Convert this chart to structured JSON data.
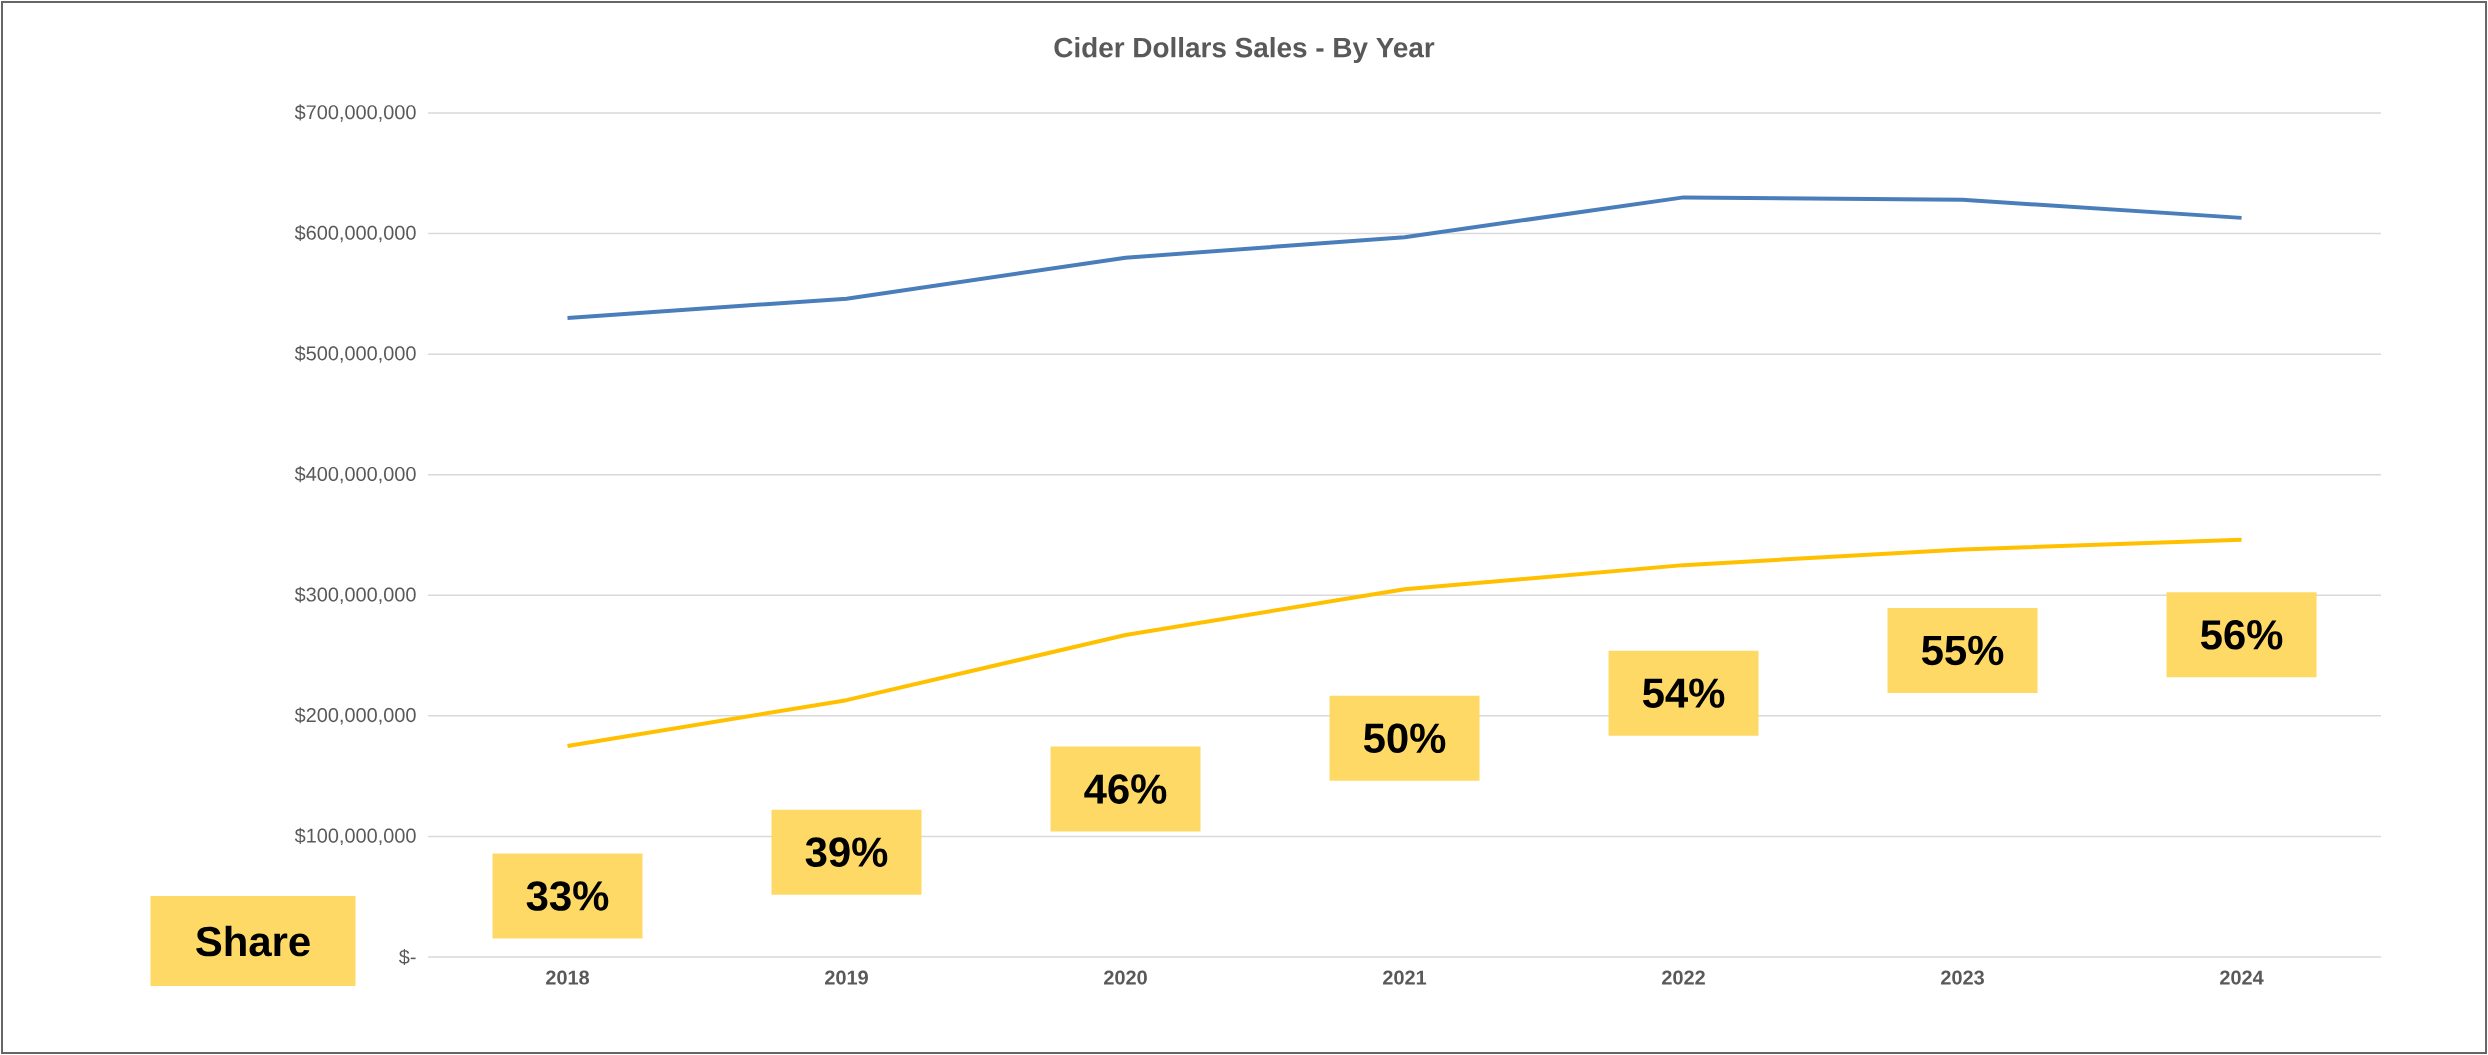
{
  "chart_data": {
    "type": "line",
    "title": "Cider Dollars Sales - By Year",
    "categories": [
      "2018",
      "2019",
      "2020",
      "2021",
      "2022",
      "2023",
      "2024"
    ],
    "series": [
      {
        "color": "#4a7ebb",
        "values": [
          530000000,
          546000000,
          580000000,
          597000000,
          630000000,
          628000000,
          613000000
        ]
      },
      {
        "color": "#ffc000",
        "values": [
          175000000,
          213000000,
          267000000,
          305000000,
          325000000,
          338000000,
          346000000
        ]
      }
    ],
    "ylim": [
      0,
      700000000
    ],
    "yticks": [
      {
        "value": 0,
        "label": "$-"
      },
      {
        "value": 100000000,
        "label": "$100,000,000"
      },
      {
        "value": 200000000,
        "label": "$200,000,000"
      },
      {
        "value": 300000000,
        "label": "$300,000,000"
      },
      {
        "value": 400000000,
        "label": "$400,000,000"
      },
      {
        "value": 500000000,
        "label": "$500,000,000"
      },
      {
        "value": 600000000,
        "label": "$600,000,000"
      },
      {
        "value": 700000000,
        "label": "$700,000,000"
      }
    ],
    "grid": "y",
    "marker": "none",
    "line_style": "solid",
    "annotations": [
      "Share",
      "33%",
      "39%",
      "46%",
      "50%",
      "54%",
      "55%",
      "56%"
    ]
  }
}
